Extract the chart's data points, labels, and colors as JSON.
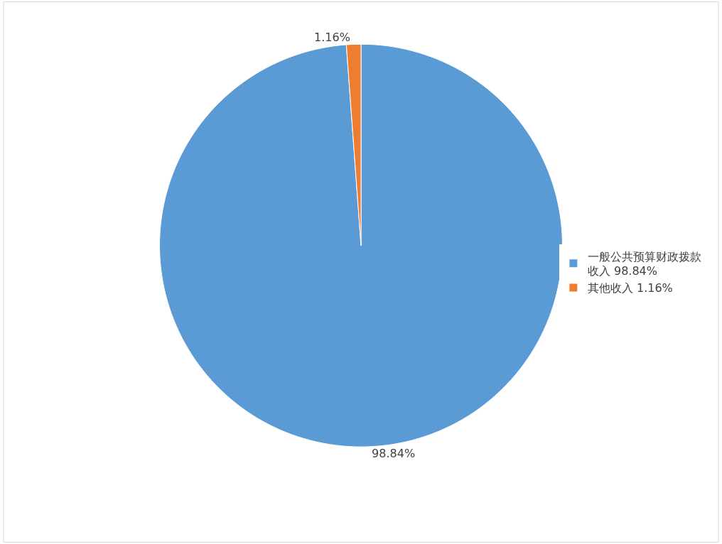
{
  "chart_data": {
    "type": "pie",
    "categories": [
      "一般公共预算财政拨款收入 98.84%",
      "其他收入 1.16%"
    ],
    "values": [
      98.84,
      1.16
    ],
    "value_labels": [
      "98.84%",
      "1.16%"
    ],
    "colors": [
      "#5b9bd5",
      "#ed7d31"
    ],
    "legend": "right"
  }
}
